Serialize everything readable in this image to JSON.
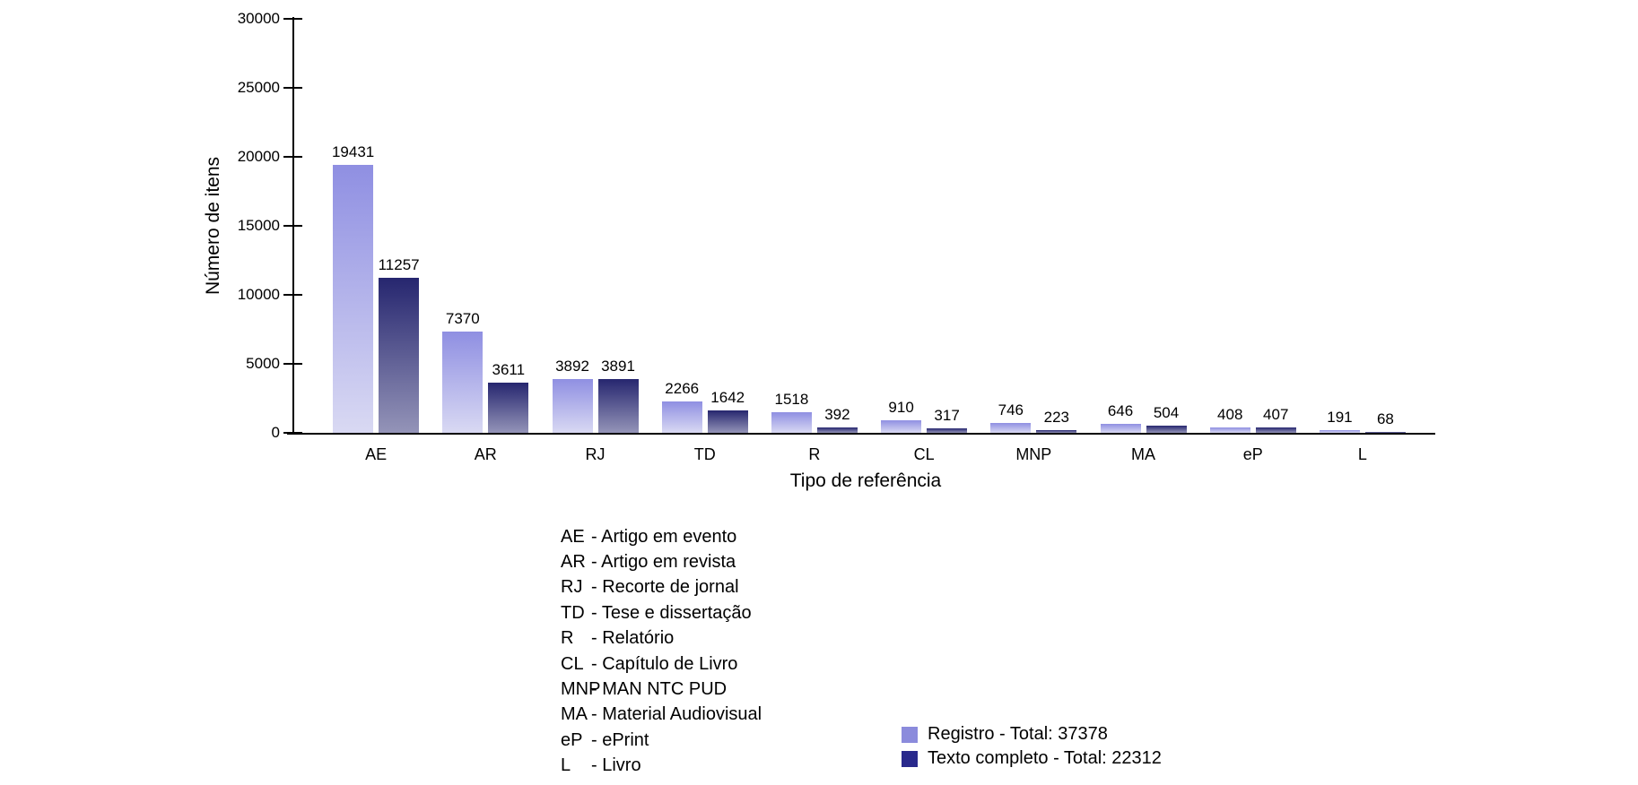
{
  "chart_data": {
    "type": "bar",
    "title": "",
    "categories": [
      "AE",
      "AR",
      "RJ",
      "TD",
      "R",
      "CL",
      "MNP",
      "MA",
      "eP",
      "L"
    ],
    "series": [
      {
        "name": "Registro - Total: 37378",
        "total": 37378,
        "color": "#8b8bdc",
        "gradient_top": "#8f8fe2",
        "gradient_bottom": "#d9d9f3",
        "values": [
          19431,
          7370,
          3892,
          2266,
          1518,
          910,
          746,
          646,
          408,
          191
        ]
      },
      {
        "name": "Texto completo - Total: 22312",
        "total": 22312,
        "color": "#29298c",
        "gradient_top": "#26266f",
        "gradient_bottom": "#9494b8",
        "values": [
          11257,
          3611,
          3891,
          1642,
          392,
          317,
          223,
          504,
          407,
          68
        ]
      }
    ],
    "xlabel": "Tipo de referência",
    "ylabel": "Número de itens",
    "ylim": [
      0,
      30000
    ],
    "yticks": [
      0,
      5000,
      10000,
      15000,
      20000,
      25000,
      30000
    ],
    "grid": false,
    "bar_value_labels": true,
    "legend_position": "bottom-right",
    "axis_color": "#000000"
  },
  "abbreviations": [
    {
      "abbr": "AE",
      "desc": "- Artigo em evento"
    },
    {
      "abbr": "AR",
      "desc": "- Artigo em revista"
    },
    {
      "abbr": "RJ",
      "desc": "- Recorte de jornal"
    },
    {
      "abbr": "TD",
      "desc": "- Tese e dissertação"
    },
    {
      "abbr": "R",
      "desc": "- Relatório"
    },
    {
      "abbr": "CL",
      "desc": "- Capítulo de Livro"
    },
    {
      "abbr": "MNP",
      "desc": "- MAN NTC PUD"
    },
    {
      "abbr": "MA",
      "desc": "- Material Audiovisual"
    },
    {
      "abbr": "eP",
      "desc": "- ePrint"
    },
    {
      "abbr": "L",
      "desc": "- Livro"
    }
  ]
}
